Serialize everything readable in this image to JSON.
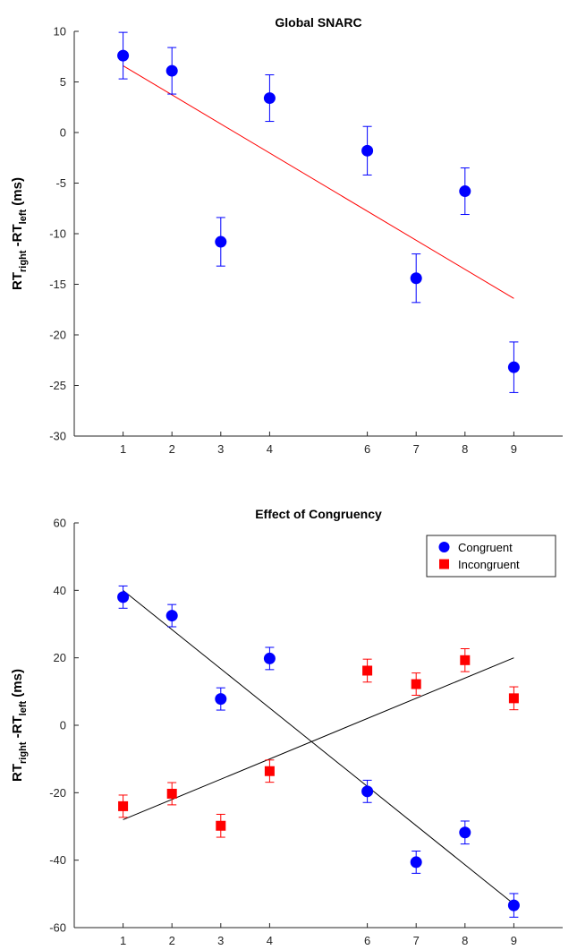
{
  "chart_data": [
    {
      "type": "scatter",
      "title": "Global SNARC",
      "ylabel": {
        "main1": "RT",
        "sub1": "right",
        "main2": " -RT",
        "sub2": "left",
        "unit": "  (ms)"
      },
      "xlim": [
        0,
        10
      ],
      "ylim": [
        -30,
        10
      ],
      "xticks": [
        1,
        2,
        3,
        4,
        6,
        7,
        8,
        9
      ],
      "yticks": [
        10,
        5,
        0,
        -5,
        -10,
        -15,
        -20,
        -25,
        -30
      ],
      "series": [
        {
          "color": "#0000ff",
          "marker": "circle",
          "x": [
            1,
            2,
            3,
            4,
            6,
            7,
            8,
            9
          ],
          "y": [
            7.6,
            6.1,
            -10.8,
            3.4,
            -1.8,
            -14.4,
            -5.8,
            -23.2
          ],
          "err": [
            2.3,
            2.3,
            2.4,
            2.3,
            2.4,
            2.4,
            2.3,
            2.5
          ]
        }
      ],
      "fits": [
        {
          "color": "#ff0000",
          "x": [
            1,
            9
          ],
          "y": [
            6.6,
            -16.4
          ]
        }
      ]
    },
    {
      "type": "scatter",
      "title": "Effect of Congruency",
      "ylabel": {
        "main1": "RT",
        "sub1": "right",
        "main2": " -RT",
        "sub2": "left",
        "unit": "  (ms)"
      },
      "xlim": [
        0,
        10
      ],
      "ylim": [
        -60,
        60
      ],
      "xticks": [
        1,
        2,
        3,
        4,
        6,
        7,
        8,
        9
      ],
      "yticks": [
        60,
        40,
        20,
        0,
        -20,
        -40,
        -60
      ],
      "legend_position": "top-right",
      "series": [
        {
          "name": "Congruent",
          "color": "#0000ff",
          "marker": "circle",
          "x": [
            1,
            2,
            3,
            4,
            6,
            7,
            8,
            9
          ],
          "y": [
            38,
            32.5,
            7.8,
            19.8,
            -19.6,
            -40.6,
            -31.8,
            -53.4
          ],
          "err": [
            3.3,
            3.3,
            3.3,
            3.3,
            3.3,
            3.3,
            3.4,
            3.5
          ]
        },
        {
          "name": "Incongruent",
          "color": "#ff0000",
          "marker": "square",
          "x": [
            1,
            2,
            3,
            4,
            6,
            7,
            8,
            9
          ],
          "y": [
            -24,
            -20.3,
            -29.8,
            -13.6,
            16.2,
            12.2,
            19.3,
            8
          ],
          "err": [
            3.3,
            3.3,
            3.4,
            3.3,
            3.4,
            3.3,
            3.4,
            3.4
          ]
        }
      ],
      "fits": [
        {
          "color": "#000000",
          "x": [
            1,
            9
          ],
          "y": [
            40,
            -53
          ]
        },
        {
          "color": "#000000",
          "x": [
            1,
            9
          ],
          "y": [
            -28,
            20
          ]
        }
      ]
    }
  ]
}
